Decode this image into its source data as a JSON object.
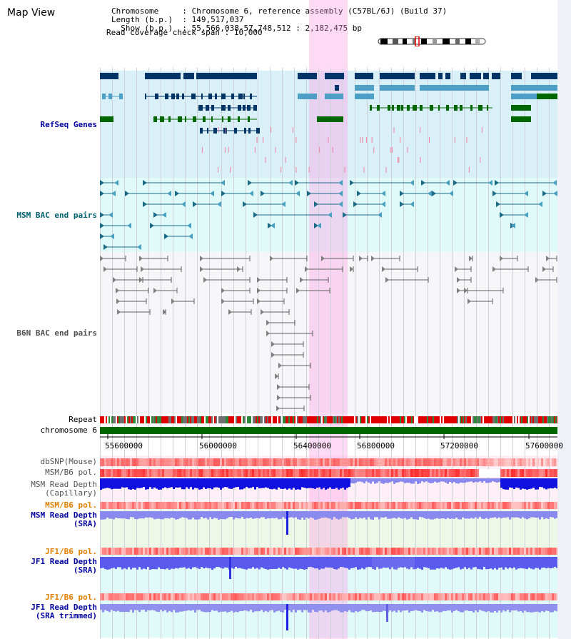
{
  "page": {
    "title": "Map View"
  },
  "header": {
    "rows": [
      {
        "key": "Chromosome     ",
        "value": "Chromosome 6, reference assembly (C57BL/6J) (Build 37)"
      },
      {
        "key": "Length (b.p.)  ",
        "value": "149,517,037"
      },
      {
        "key": "  Show (b.p.)  ",
        "value": "55,566,038-57,748,512 : 2,182,475 bp"
      }
    ],
    "coverage_key": "Read coverage check span",
    "coverage_value": "10,000"
  },
  "colors": {
    "refseq_bg": "#daf0f8",
    "msm_bac_bg": "#e0fafa",
    "b6n_bac_bg": "#f4f4f8",
    "highlight": "#ffd8f4",
    "label_dark_blue": "#0000a0",
    "label_teal": "#006070",
    "label_gray": "#505050",
    "label_orange": "#e08000",
    "refseq_navy": "#003366",
    "refseq_light": "#4d9fc6",
    "refseq_green": "#006600",
    "chromosome_green": "#006600",
    "repeat_red": "#e00000"
  },
  "tracks": {
    "refseq": "RefSeq Genes",
    "msm_bac": "MSM BAC end pairs",
    "b6n_bac": "B6N BAC end pairs",
    "repeat": "Repeat",
    "chromosome": "chromosome 6",
    "dbsnp": "dbSNP(Mouse)",
    "msm_pol": "MSM/B6 pol.",
    "msm_depth_cap_1": "MSM Read Depth",
    "msm_depth_cap_2": "(Capillary)",
    "msm_pol_2": "MSM/B6 pol.",
    "msm_depth_sra_1": "MSM Read Depth",
    "msm_depth_sra_2": "(SRA)",
    "jf1_pol": "JF1/B6 pol.",
    "jf1_depth_1": "JF1 Read Depth",
    "jf1_depth_2": "(SRA)",
    "jf1_pol_2": "JF1/B6 pol.",
    "jf1_trim_1": "JF1 Read Depth",
    "jf1_trim_2": "(SRA trimmed)"
  },
  "axis": {
    "ticks": [
      "55600000",
      "56000000",
      "56400000",
      "56800000",
      "57200000",
      "57600000"
    ]
  }
}
